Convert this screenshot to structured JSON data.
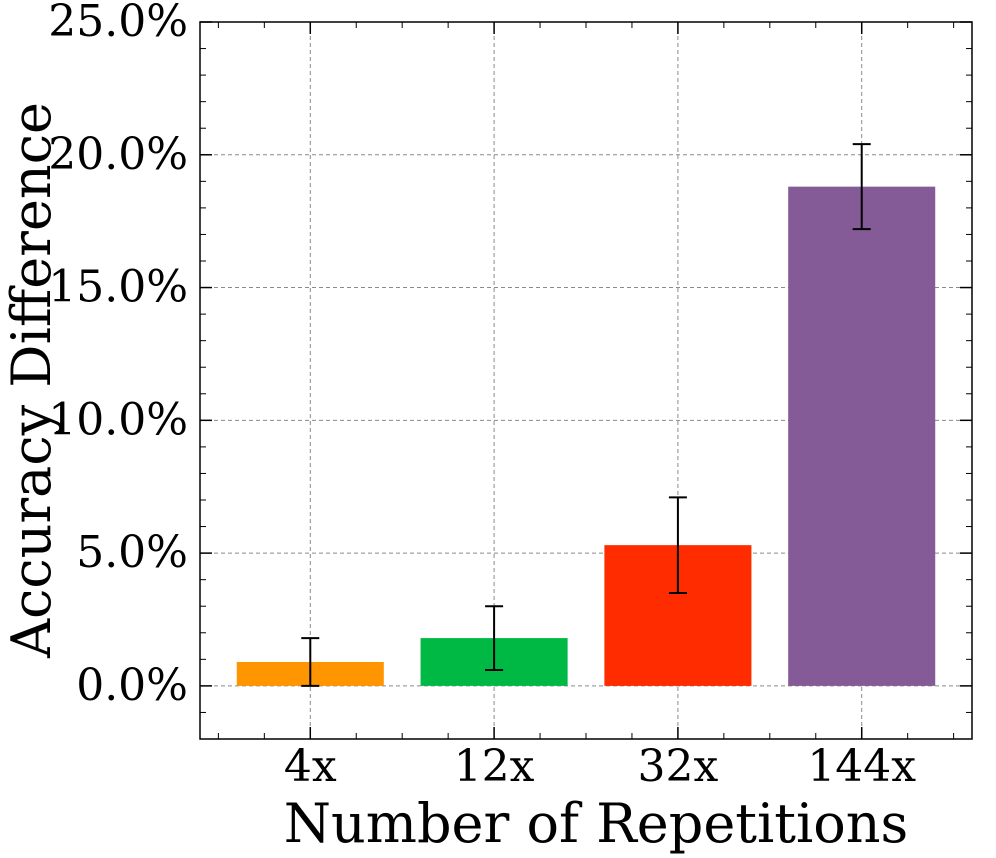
{
  "chart_data": {
    "type": "bar",
    "categories": [
      "4x",
      "12x",
      "32x",
      "144x"
    ],
    "values": [
      0.9,
      1.8,
      5.3,
      18.8
    ],
    "errors": [
      0.9,
      1.2,
      1.8,
      1.6
    ],
    "colors": [
      "#ff9500",
      "#00b945",
      "#ff2c00",
      "#845b97"
    ],
    "xlabel": "Number of Repetitions",
    "ylabel": "Accuracy Difference",
    "ylim": [
      -2.0,
      25.0
    ],
    "yticks": [
      0.0,
      5.0,
      10.0,
      15.0,
      20.0,
      25.0
    ],
    "ytick_labels": [
      "0.0%",
      "5.0%",
      "10.0%",
      "15.0%",
      "20.0%",
      "25.0%"
    ],
    "grid": true,
    "error_color": "#000000"
  }
}
